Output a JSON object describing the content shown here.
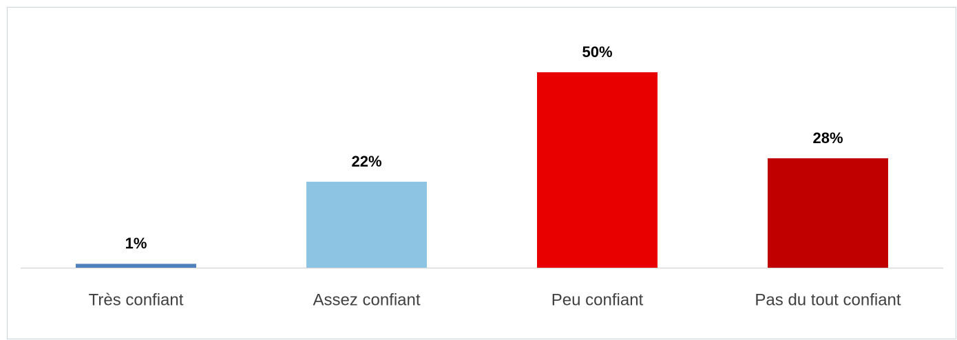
{
  "chart_data": {
    "type": "bar",
    "categories": [
      "Très confiant",
      "Assez confiant",
      "Peu confiant",
      "Pas du tout confiant"
    ],
    "values": [
      1,
      22,
      50,
      28
    ],
    "value_labels": [
      "1%",
      "22%",
      "50%",
      "28%"
    ],
    "colors": [
      "#4f81bd",
      "#8ec4e3",
      "#e80000",
      "#c00000"
    ]
  }
}
